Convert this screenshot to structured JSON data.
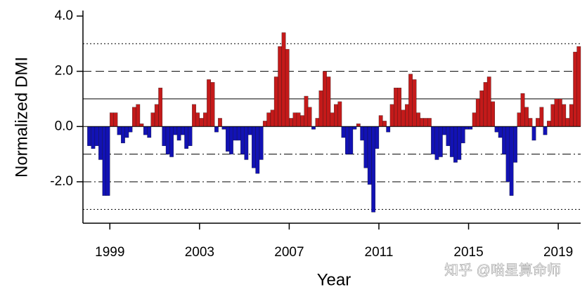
{
  "chart_data": {
    "type": "bar",
    "x_label": "Year",
    "y_label": "Normalized DMI",
    "watermark": "知乎 @喵星算命师",
    "pos_color": "#c41a1a",
    "neg_color": "#1212b4",
    "xlim": [
      1997.8,
      2020.0
    ],
    "ylim": [
      -3.5,
      4.2
    ],
    "xticks": [
      1999,
      2003,
      2007,
      2011,
      2015,
      2019
    ],
    "yticks": [
      {
        "value": -2,
        "label": "-2.0"
      },
      {
        "value": 0,
        "label": "0.0"
      },
      {
        "value": 2,
        "label": "2.0"
      },
      {
        "value": 4,
        "label": "4.0"
      }
    ],
    "ref_lines": [
      {
        "value": 3,
        "style": "dotted"
      },
      {
        "value": 2,
        "style": "dashed"
      },
      {
        "value": 1,
        "style": "solid"
      },
      {
        "value": -1,
        "style": "dashdot"
      },
      {
        "value": -2,
        "style": "dashdot"
      },
      {
        "value": -3,
        "style": "dotted"
      }
    ],
    "x": [
      1998.0,
      1998.17,
      1998.33,
      1998.5,
      1998.67,
      1998.83,
      1999.0,
      1999.17,
      1999.33,
      1999.5,
      1999.67,
      1999.83,
      2000.0,
      2000.17,
      2000.33,
      2000.5,
      2000.67,
      2000.83,
      2001.0,
      2001.17,
      2001.33,
      2001.5,
      2001.67,
      2001.83,
      2002.0,
      2002.17,
      2002.33,
      2002.5,
      2002.67,
      2002.83,
      2003.0,
      2003.17,
      2003.33,
      2003.5,
      2003.67,
      2003.83,
      2004.0,
      2004.17,
      2004.33,
      2004.5,
      2004.67,
      2004.83,
      2005.0,
      2005.17,
      2005.33,
      2005.5,
      2005.67,
      2005.83,
      2006.0,
      2006.17,
      2006.33,
      2006.5,
      2006.67,
      2006.83,
      2007.0,
      2007.17,
      2007.33,
      2007.5,
      2007.67,
      2007.83,
      2008.0,
      2008.17,
      2008.33,
      2008.5,
      2008.67,
      2008.83,
      2009.0,
      2009.17,
      2009.33,
      2009.5,
      2009.67,
      2009.83,
      2010.0,
      2010.17,
      2010.33,
      2010.5,
      2010.67,
      2010.83,
      2011.0,
      2011.17,
      2011.33,
      2011.5,
      2011.67,
      2011.83,
      2012.0,
      2012.17,
      2012.33,
      2012.5,
      2012.67,
      2012.83,
      2013.0,
      2013.17,
      2013.33,
      2013.5,
      2013.67,
      2013.83,
      2014.0,
      2014.17,
      2014.33,
      2014.5,
      2014.67,
      2014.83,
      2015.0,
      2015.17,
      2015.33,
      2015.5,
      2015.67,
      2015.83,
      2016.0,
      2016.17,
      2016.33,
      2016.5,
      2016.67,
      2016.83,
      2017.0,
      2017.17,
      2017.33,
      2017.5,
      2017.67,
      2017.83,
      2018.0,
      2018.17,
      2018.33,
      2018.5,
      2018.67,
      2018.83,
      2019.0,
      2019.17,
      2019.33,
      2019.5,
      2019.67,
      2019.83
    ],
    "values": [
      -0.7,
      -0.8,
      -0.7,
      -1.2,
      -2.5,
      -2.5,
      0.5,
      0.5,
      -0.3,
      -0.6,
      -0.4,
      -0.2,
      0.7,
      0.8,
      0.1,
      -0.3,
      -0.4,
      0.5,
      0.8,
      1.4,
      -0.7,
      -1.0,
      -1.1,
      -0.3,
      -0.5,
      -0.3,
      -0.8,
      -0.7,
      0.8,
      0.5,
      0.3,
      0.5,
      1.7,
      1.6,
      -0.2,
      0.3,
      -0.1,
      -0.9,
      -1.0,
      -0.5,
      -0.5,
      -1.0,
      -1.2,
      -0.3,
      -1.5,
      -1.7,
      -1.2,
      0.2,
      0.5,
      0.6,
      1.8,
      2.9,
      3.4,
      2.8,
      0.3,
      0.5,
      0.5,
      0.4,
      1.1,
      0.7,
      -0.1,
      0.3,
      1.3,
      2.0,
      1.8,
      0.5,
      0.8,
      0.9,
      -0.4,
      -1.0,
      -1.0,
      -0.1,
      0.1,
      -0.5,
      -1.5,
      -2.1,
      -3.1,
      -0.8,
      0.4,
      0.2,
      -0.2,
      0.8,
      1.4,
      1.4,
      0.6,
      0.8,
      1.9,
      1.7,
      0.5,
      0.3,
      0.3,
      0.3,
      -1.0,
      -1.2,
      -1.1,
      -0.3,
      -0.7,
      -1.1,
      -1.3,
      -1.2,
      -0.6,
      -0.1,
      -0.1,
      0.5,
      1.0,
      1.3,
      1.6,
      1.8,
      0.9,
      -0.2,
      -0.4,
      -1.0,
      -2.0,
      -2.5,
      -1.3,
      0.5,
      1.2,
      0.7,
      0.3,
      -0.5,
      0.3,
      0.7,
      -0.3,
      0.2,
      0.8,
      1.0,
      1.0,
      0.8,
      0.3,
      0.8,
      2.7,
      2.9
    ]
  }
}
